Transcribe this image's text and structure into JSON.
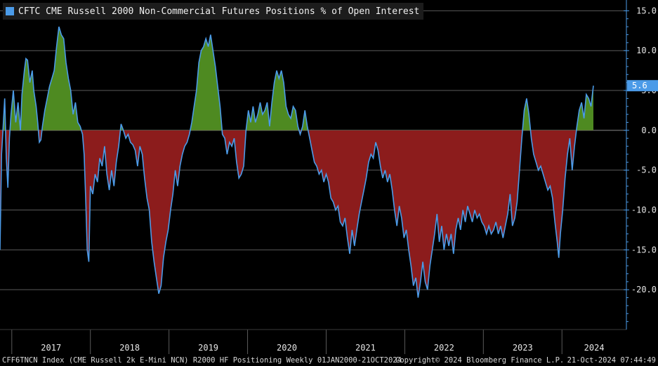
{
  "chart_data": {
    "type": "area",
    "title": "CFTC CME Russell 2000 Non-Commercial Futures Positions % of Open Interest",
    "series_name": "CFTC CME Russell 2000 Non-Commercial Futures Positions % of Open Interest",
    "xlabel": "",
    "ylabel": "",
    "ylim": [
      -25,
      16
    ],
    "xlim": [
      2016.85,
      2024.82
    ],
    "yticks": [
      15,
      10,
      5,
      0,
      -5,
      -10,
      -15,
      -20
    ],
    "ytick_labels": [
      "15.0",
      "10.0",
      "5.0",
      "0.0",
      "-5.0",
      "-10.0",
      "-15.0",
      "-20.0"
    ],
    "year_labels": [
      "2017",
      "2018",
      "2019",
      "2020",
      "2021",
      "2022",
      "2023",
      "2024"
    ],
    "last_value": 5.6,
    "last_value_label": "5.6",
    "positive_color": "#4e8a21",
    "negative_color": "#8c1c1c",
    "line_color": "#4b9be8",
    "grid": true,
    "legend": "top-left",
    "points": [
      [
        2016.85,
        -15.0
      ],
      [
        2016.87,
        -3.0
      ],
      [
        2016.89,
        0.5
      ],
      [
        2016.91,
        4.0
      ],
      [
        2016.93,
        -3.5
      ],
      [
        2016.95,
        -7.2
      ],
      [
        2016.97,
        -1.0
      ],
      [
        2016.99,
        2.0
      ],
      [
        2017.02,
        5.0
      ],
      [
        2017.05,
        1.0
      ],
      [
        2017.08,
        3.5
      ],
      [
        2017.11,
        0.0
      ],
      [
        2017.13,
        4.5
      ],
      [
        2017.16,
        7.5
      ],
      [
        2017.18,
        9.0
      ],
      [
        2017.2,
        8.8
      ],
      [
        2017.23,
        6.0
      ],
      [
        2017.26,
        7.5
      ],
      [
        2017.28,
        5.0
      ],
      [
        2017.31,
        3.0
      ],
      [
        2017.33,
        1.0
      ],
      [
        2017.35,
        -1.5
      ],
      [
        2017.37,
        -1.2
      ],
      [
        2017.39,
        0.5
      ],
      [
        2017.42,
        2.5
      ],
      [
        2017.45,
        4.0
      ],
      [
        2017.48,
        5.5
      ],
      [
        2017.51,
        6.5
      ],
      [
        2017.54,
        7.5
      ],
      [
        2017.57,
        10.5
      ],
      [
        2017.6,
        13.0
      ],
      [
        2017.63,
        12.0
      ],
      [
        2017.66,
        11.5
      ],
      [
        2017.69,
        8.5
      ],
      [
        2017.72,
        6.5
      ],
      [
        2017.75,
        5.0
      ],
      [
        2017.78,
        2.0
      ],
      [
        2017.81,
        3.5
      ],
      [
        2017.84,
        1.0
      ],
      [
        2017.87,
        0.5
      ],
      [
        2017.9,
        -0.5
      ],
      [
        2017.92,
        -3.0
      ],
      [
        2017.94,
        -8.5
      ],
      [
        2017.96,
        -15.0
      ],
      [
        2017.98,
        -16.5
      ],
      [
        2018.0,
        -7.0
      ],
      [
        2018.03,
        -8.0
      ],
      [
        2018.06,
        -5.5
      ],
      [
        2018.09,
        -6.5
      ],
      [
        2018.12,
        -3.5
      ],
      [
        2018.15,
        -4.5
      ],
      [
        2018.18,
        -2.0
      ],
      [
        2018.21,
        -5.5
      ],
      [
        2018.24,
        -7.5
      ],
      [
        2018.27,
        -5.0
      ],
      [
        2018.3,
        -7.0
      ],
      [
        2018.33,
        -4.0
      ],
      [
        2018.36,
        -2.0
      ],
      [
        2018.39,
        0.8
      ],
      [
        2018.42,
        0.0
      ],
      [
        2018.45,
        -1.0
      ],
      [
        2018.48,
        -0.5
      ],
      [
        2018.51,
        -1.5
      ],
      [
        2018.54,
        -1.8
      ],
      [
        2018.57,
        -2.5
      ],
      [
        2018.6,
        -4.5
      ],
      [
        2018.63,
        -2.0
      ],
      [
        2018.66,
        -3.0
      ],
      [
        2018.69,
        -6.0
      ],
      [
        2018.72,
        -8.5
      ],
      [
        2018.75,
        -10.0
      ],
      [
        2018.78,
        -14.0
      ],
      [
        2018.81,
        -16.5
      ],
      [
        2018.84,
        -18.5
      ],
      [
        2018.87,
        -20.5
      ],
      [
        2018.9,
        -19.5
      ],
      [
        2018.93,
        -16.0
      ],
      [
        2018.96,
        -14.0
      ],
      [
        2018.99,
        -12.5
      ],
      [
        2019.02,
        -10.0
      ],
      [
        2019.05,
        -8.0
      ],
      [
        2019.08,
        -5.0
      ],
      [
        2019.11,
        -7.0
      ],
      [
        2019.14,
        -4.5
      ],
      [
        2019.17,
        -3.0
      ],
      [
        2019.2,
        -2.0
      ],
      [
        2019.23,
        -1.5
      ],
      [
        2019.26,
        -0.5
      ],
      [
        2019.29,
        1.0
      ],
      [
        2019.32,
        3.0
      ],
      [
        2019.35,
        5.0
      ],
      [
        2019.38,
        8.5
      ],
      [
        2019.41,
        10.0
      ],
      [
        2019.44,
        10.5
      ],
      [
        2019.47,
        11.5
      ],
      [
        2019.5,
        10.5
      ],
      [
        2019.53,
        12.0
      ],
      [
        2019.56,
        10.0
      ],
      [
        2019.59,
        8.0
      ],
      [
        2019.62,
        5.5
      ],
      [
        2019.65,
        3.0
      ],
      [
        2019.68,
        -0.5
      ],
      [
        2019.71,
        -1.0
      ],
      [
        2019.74,
        -3.0
      ],
      [
        2019.77,
        -1.5
      ],
      [
        2019.8,
        -2.0
      ],
      [
        2019.83,
        -1.0
      ],
      [
        2019.86,
        -4.0
      ],
      [
        2019.89,
        -6.0
      ],
      [
        2019.92,
        -5.5
      ],
      [
        2019.95,
        -4.5
      ],
      [
        2019.98,
        0.0
      ],
      [
        2020.01,
        2.5
      ],
      [
        2020.04,
        1.0
      ],
      [
        2020.07,
        3.0
      ],
      [
        2020.1,
        1.0
      ],
      [
        2020.13,
        2.0
      ],
      [
        2020.16,
        3.5
      ],
      [
        2020.19,
        2.0
      ],
      [
        2020.22,
        2.5
      ],
      [
        2020.25,
        3.5
      ],
      [
        2020.28,
        0.5
      ],
      [
        2020.31,
        3.5
      ],
      [
        2020.34,
        6.0
      ],
      [
        2020.37,
        7.5
      ],
      [
        2020.4,
        6.5
      ],
      [
        2020.43,
        7.5
      ],
      [
        2020.46,
        6.0
      ],
      [
        2020.49,
        3.0
      ],
      [
        2020.52,
        2.0
      ],
      [
        2020.55,
        1.5
      ],
      [
        2020.58,
        3.0
      ],
      [
        2020.61,
        2.5
      ],
      [
        2020.64,
        0.5
      ],
      [
        2020.67,
        -0.5
      ],
      [
        2020.7,
        0.5
      ],
      [
        2020.73,
        2.5
      ],
      [
        2020.76,
        0.5
      ],
      [
        2020.79,
        -1.0
      ],
      [
        2020.82,
        -2.5
      ],
      [
        2020.85,
        -4.0
      ],
      [
        2020.88,
        -4.5
      ],
      [
        2020.91,
        -5.5
      ],
      [
        2020.94,
        -5.0
      ],
      [
        2020.97,
        -6.5
      ],
      [
        2021.0,
        -5.5
      ],
      [
        2021.03,
        -6.5
      ],
      [
        2021.06,
        -8.5
      ],
      [
        2021.09,
        -9.0
      ],
      [
        2021.12,
        -10.0
      ],
      [
        2021.15,
        -9.5
      ],
      [
        2021.18,
        -11.5
      ],
      [
        2021.21,
        -12.0
      ],
      [
        2021.24,
        -11.0
      ],
      [
        2021.27,
        -13.5
      ],
      [
        2021.3,
        -15.5
      ],
      [
        2021.33,
        -12.5
      ],
      [
        2021.36,
        -14.5
      ],
      [
        2021.39,
        -12.5
      ],
      [
        2021.42,
        -10.5
      ],
      [
        2021.45,
        -9.0
      ],
      [
        2021.48,
        -7.5
      ],
      [
        2021.51,
        -6.0
      ],
      [
        2021.54,
        -4.0
      ],
      [
        2021.57,
        -3.0
      ],
      [
        2021.6,
        -3.5
      ],
      [
        2021.63,
        -1.5
      ],
      [
        2021.66,
        -2.5
      ],
      [
        2021.69,
        -4.5
      ],
      [
        2021.72,
        -6.0
      ],
      [
        2021.75,
        -5.0
      ],
      [
        2021.78,
        -6.5
      ],
      [
        2021.81,
        -5.5
      ],
      [
        2021.84,
        -7.5
      ],
      [
        2021.87,
        -10.0
      ],
      [
        2021.9,
        -12.0
      ],
      [
        2021.93,
        -9.5
      ],
      [
        2021.96,
        -11.0
      ],
      [
        2021.99,
        -13.5
      ],
      [
        2022.02,
        -12.5
      ],
      [
        2022.05,
        -15.0
      ],
      [
        2022.08,
        -17.0
      ],
      [
        2022.11,
        -19.5
      ],
      [
        2022.14,
        -18.5
      ],
      [
        2022.17,
        -21.0
      ],
      [
        2022.2,
        -19.0
      ],
      [
        2022.23,
        -16.5
      ],
      [
        2022.26,
        -19.0
      ],
      [
        2022.29,
        -20.0
      ],
      [
        2022.32,
        -17.0
      ],
      [
        2022.35,
        -15.0
      ],
      [
        2022.38,
        -13.0
      ],
      [
        2022.41,
        -10.5
      ],
      [
        2022.44,
        -14.0
      ],
      [
        2022.47,
        -12.0
      ],
      [
        2022.5,
        -15.0
      ],
      [
        2022.53,
        -13.0
      ],
      [
        2022.56,
        -14.5
      ],
      [
        2022.59,
        -13.0
      ],
      [
        2022.62,
        -15.5
      ],
      [
        2022.65,
        -12.5
      ],
      [
        2022.68,
        -11.0
      ],
      [
        2022.71,
        -12.5
      ],
      [
        2022.74,
        -10.0
      ],
      [
        2022.77,
        -11.5
      ],
      [
        2022.8,
        -9.5
      ],
      [
        2022.83,
        -10.5
      ],
      [
        2022.86,
        -11.5
      ],
      [
        2022.89,
        -10.0
      ],
      [
        2022.92,
        -11.0
      ],
      [
        2022.95,
        -10.5
      ],
      [
        2022.98,
        -11.5
      ],
      [
        2023.01,
        -12.0
      ],
      [
        2023.04,
        -13.0
      ],
      [
        2023.07,
        -12.0
      ],
      [
        2023.1,
        -13.0
      ],
      [
        2023.13,
        -12.5
      ],
      [
        2023.16,
        -11.5
      ],
      [
        2023.19,
        -13.0
      ],
      [
        2023.22,
        -12.0
      ],
      [
        2023.25,
        -13.5
      ],
      [
        2023.28,
        -12.0
      ],
      [
        2023.31,
        -10.5
      ],
      [
        2023.34,
        -8.0
      ],
      [
        2023.37,
        -12.0
      ],
      [
        2023.4,
        -11.0
      ],
      [
        2023.43,
        -9.0
      ],
      [
        2023.46,
        -5.0
      ],
      [
        2023.49,
        -1.0
      ],
      [
        2023.52,
        2.5
      ],
      [
        2023.55,
        4.0
      ],
      [
        2023.58,
        2.0
      ],
      [
        2023.61,
        -1.0
      ],
      [
        2023.64,
        -3.0
      ],
      [
        2023.67,
        -4.0
      ],
      [
        2023.7,
        -5.0
      ],
      [
        2023.73,
        -4.5
      ],
      [
        2023.76,
        -5.5
      ],
      [
        2023.79,
        -6.5
      ],
      [
        2023.82,
        -7.5
      ],
      [
        2023.85,
        -7.0
      ],
      [
        2023.88,
        -8.5
      ],
      [
        2023.91,
        -11.5
      ],
      [
        2023.94,
        -14.0
      ],
      [
        2023.96,
        -16.0
      ],
      [
        2023.98,
        -13.0
      ],
      [
        2024.01,
        -10.0
      ],
      [
        2024.04,
        -6.0
      ],
      [
        2024.07,
        -3.0
      ],
      [
        2024.1,
        -1.0
      ],
      [
        2024.13,
        -5.0
      ],
      [
        2024.16,
        -2.0
      ],
      [
        2024.19,
        0.5
      ],
      [
        2024.22,
        2.5
      ],
      [
        2024.25,
        3.5
      ],
      [
        2024.28,
        1.5
      ],
      [
        2024.31,
        4.5
      ],
      [
        2024.34,
        4.0
      ],
      [
        2024.37,
        3.0
      ],
      [
        2024.4,
        5.6
      ]
    ]
  },
  "legend": {
    "label": "CFTC CME Russell 2000 Non-Commercial Futures Positions % of Open Interest"
  },
  "footer": {
    "left": "CFF6TNCN Index (CME Russell 2k E-Mini NCN) R2000 HF Positioning  Weekly 01JAN2000-21OCT2024",
    "center": "Copyright© 2024 Bloomberg Finance L.P.",
    "right": "21-Oct-2024 07:44:49"
  }
}
